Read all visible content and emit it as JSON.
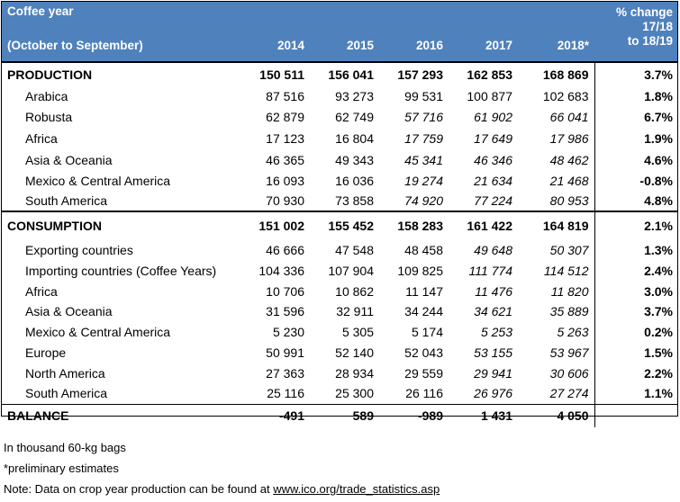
{
  "header": {
    "coffee_year": "Coffee year",
    "october_september": "(October to September)",
    "years": [
      "2014",
      "2015",
      "2016",
      "2017",
      "2018*"
    ],
    "pct_line1": "% change",
    "pct_line2": "17/18",
    "pct_line3": "to 18/19"
  },
  "production": {
    "label": "PRODUCTION",
    "values": [
      "150 511",
      "156 041",
      "157 293",
      "162 853",
      "168 869"
    ],
    "pct": "3.7%",
    "rows": [
      {
        "label": "Arabica",
        "values": [
          "87 516",
          "93 273",
          "99 531",
          "100 877",
          "102 683"
        ],
        "pct": "1.8%"
      },
      {
        "label": "Robusta",
        "values": [
          "62 879",
          "62 749",
          "57 716",
          "61 902",
          "66 041"
        ],
        "pct": "6.7%"
      },
      {
        "label": "Africa",
        "values": [
          "17 123",
          "16 804",
          "17 759",
          "17 649",
          "17 986"
        ],
        "pct": "1.9%"
      },
      {
        "label": "Asia & Oceania",
        "values": [
          "46 365",
          "49 343",
          "45 341",
          "46 346",
          "48 462"
        ],
        "pct": "4.6%"
      },
      {
        "label": "Mexico & Central America",
        "values": [
          "16 093",
          "16 036",
          "19 274",
          "21 634",
          "21 468"
        ],
        "pct": "-0.8%"
      },
      {
        "label": "South America",
        "values": [
          "70 930",
          "73 858",
          "74 920",
          "77 224",
          "80 953"
        ],
        "pct": "4.8%"
      }
    ]
  },
  "consumption": {
    "label": "CONSUMPTION",
    "values": [
      "151 002",
      "155 452",
      "158 283",
      "161 422",
      "164 819"
    ],
    "pct": "2.1%",
    "rows": [
      {
        "label": "Exporting countries",
        "values": [
          "46 666",
          "47 548",
          "48 458",
          "49 648",
          "50 307"
        ],
        "pct": "1.3%"
      },
      {
        "label": "Importing countries (Coffee Years)",
        "values": [
          "104 336",
          "107 904",
          "109 825",
          "111 774",
          "114 512"
        ],
        "pct": "2.4%"
      },
      {
        "label": "Africa",
        "values": [
          "10 706",
          "10 862",
          "11 147",
          "11 476",
          "11 820"
        ],
        "pct": "3.0%"
      },
      {
        "label": "Asia & Oceania",
        "values": [
          "31 596",
          "32 911",
          "34 244",
          "34 621",
          "35 889"
        ],
        "pct": "3.7%"
      },
      {
        "label": "Mexico & Central America",
        "values": [
          "5 230",
          "5 305",
          "5 174",
          "5 253",
          "5 263"
        ],
        "pct": "0.2%"
      },
      {
        "label": "Europe",
        "values": [
          "50 991",
          "52 140",
          "52 043",
          "53 155",
          "53 967"
        ],
        "pct": "1.5%"
      },
      {
        "label": "North America",
        "values": [
          "27 363",
          "28 934",
          "29 559",
          "29 941",
          "30 606"
        ],
        "pct": "2.2%"
      },
      {
        "label": "South America",
        "values": [
          "25 116",
          "25 300",
          "26 116",
          "26 976",
          "27 274"
        ],
        "pct": "1.1%"
      }
    ]
  },
  "balance": {
    "label": "BALANCE",
    "values": [
      "-491",
      "589",
      "-989",
      "1 431",
      "4 050"
    ]
  },
  "notes": {
    "units": "In thousand 60-kg bags",
    "preliminary": "*preliminary estimates",
    "note_prefix": "Note: Data on crop year production can be found at ",
    "note_link": "www.ico.org/trade_statistics.asp"
  }
}
